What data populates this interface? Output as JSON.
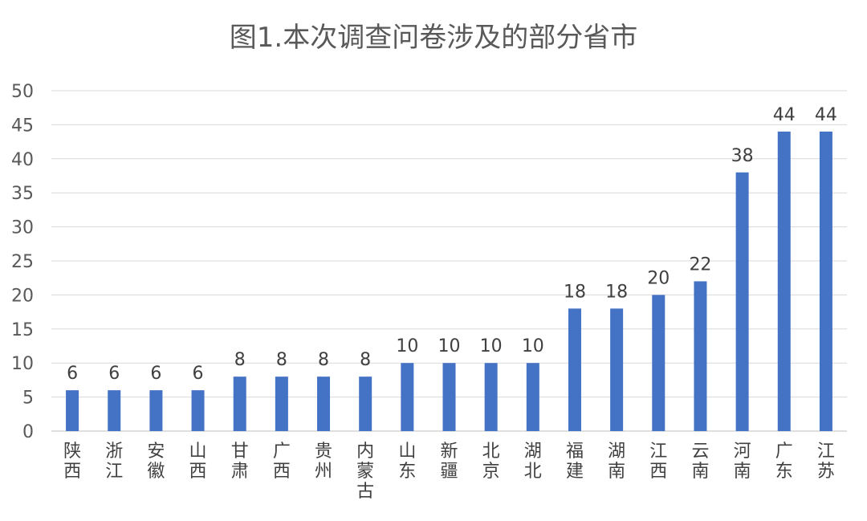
{
  "chart_data": {
    "type": "bar",
    "title": "图1.本次调查问卷涉及的部分省市",
    "xlabel": "",
    "ylabel": "",
    "ylim": [
      0,
      50
    ],
    "yticks": [
      0,
      5,
      10,
      15,
      20,
      25,
      30,
      35,
      40,
      45,
      50
    ],
    "grid": true,
    "legend": "none",
    "bar_color": "#4472C4",
    "categories": [
      "陕西",
      "浙江",
      "安徽",
      "山西",
      "甘肃",
      "广西",
      "贵州",
      "内蒙古",
      "山东",
      "新疆",
      "北京",
      "湖北",
      "福建",
      "湖南",
      "江西",
      "云南",
      "河南",
      "广东",
      "江苏"
    ],
    "values": [
      6,
      6,
      6,
      6,
      8,
      8,
      8,
      8,
      10,
      10,
      10,
      10,
      18,
      18,
      20,
      22,
      38,
      44,
      44
    ]
  }
}
